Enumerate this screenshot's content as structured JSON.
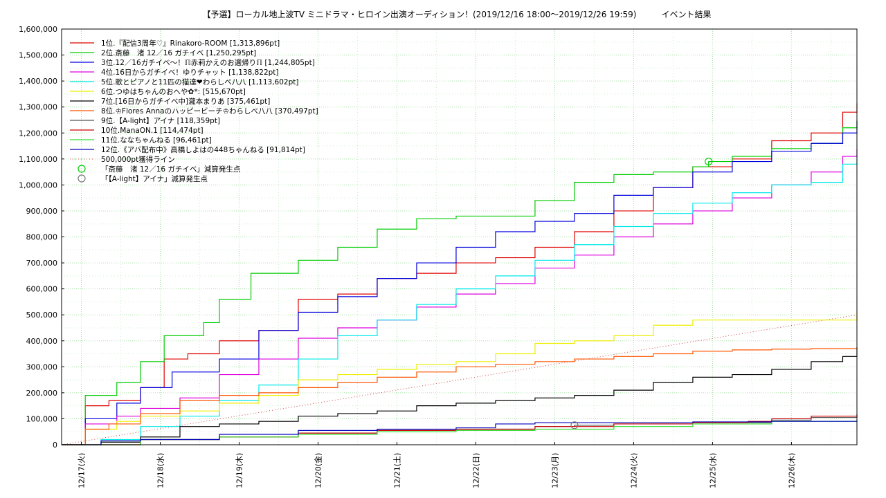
{
  "chart_data": {
    "type": "line",
    "title": "【予選】ローカル地上波TV ミニドラマ・ヒロイン出演オーディション！(2019/12/16 18:00〜2019/12/26 19:59)　　　イベント結果",
    "xlabel": "",
    "ylabel": "",
    "ylim": [
      0,
      1600000
    ],
    "xlim": [
      0,
      10.08
    ],
    "x_unit": "days since 2019/12/16 18:00",
    "grid": true,
    "legend_position": "top-left",
    "y_ticks": [
      "0",
      "100,000",
      "200,000",
      "300,000",
      "400,000",
      "500,000",
      "600,000",
      "700,000",
      "800,000",
      "900,000",
      "1,000,000",
      "1,100,000",
      "1,200,000",
      "1,300,000",
      "1,400,000",
      "1,500,000",
      "1,600,000"
    ],
    "x_ticks": [
      {
        "x": 0.25,
        "label": "12/17(火)"
      },
      {
        "x": 1.25,
        "label": "12/18(水)"
      },
      {
        "x": 2.25,
        "label": "12/19(木)"
      },
      {
        "x": 3.25,
        "label": "12/20(金)"
      },
      {
        "x": 4.25,
        "label": "12/21(土)"
      },
      {
        "x": 5.25,
        "label": "12/22(日)"
      },
      {
        "x": 6.25,
        "label": "12/23(月)"
      },
      {
        "x": 7.25,
        "label": "12/24(火)"
      },
      {
        "x": 8.25,
        "label": "12/25(水)"
      },
      {
        "x": 9.25,
        "label": "12/26(木)"
      }
    ],
    "series": [
      {
        "name": "1位.『配信3周年♡』Rinakoro-ROOM [1,313,896pt]",
        "color": "#e00000",
        "x": [
          0,
          0.3,
          0.6,
          1.0,
          1.3,
          1.6,
          2.0,
          2.5,
          3.0,
          3.5,
          4.0,
          4.5,
          5.0,
          5.5,
          6.0,
          6.5,
          7.0,
          7.5,
          8.0,
          8.5,
          9.0,
          9.5,
          9.9,
          10.08
        ],
        "y": [
          0,
          150000,
          170000,
          220000,
          330000,
          350000,
          400000,
          440000,
          560000,
          580000,
          640000,
          660000,
          700000,
          720000,
          760000,
          820000,
          900000,
          990000,
          1070000,
          1100000,
          1170000,
          1200000,
          1280000,
          1313896
        ]
      },
      {
        "name": "2位.斎藤　渚 12／16 ガチイベ [1,250,295pt]",
        "color": "#00cc00",
        "x": [
          0,
          0.3,
          0.7,
          1.0,
          1.3,
          1.8,
          2.0,
          2.4,
          3.0,
          3.5,
          4.0,
          4.5,
          5.0,
          5.5,
          6.0,
          6.5,
          7.0,
          7.5,
          8.0,
          8.2,
          8.5,
          9.0,
          9.5,
          9.9,
          10.08
        ],
        "y": [
          0,
          190000,
          240000,
          320000,
          420000,
          470000,
          560000,
          660000,
          710000,
          760000,
          830000,
          870000,
          880000,
          880000,
          940000,
          1010000,
          1040000,
          1050000,
          1070000,
          1090000,
          1110000,
          1140000,
          1160000,
          1220000,
          1250295
        ]
      },
      {
        "name": "3位.12／16ガチイベ〜！ℿ赤莉かえのお選帰りℿ [1,244,805pt]",
        "color": "#0000dd",
        "x": [
          0,
          0.3,
          0.7,
          1.0,
          1.4,
          2.0,
          2.5,
          3.0,
          3.5,
          4.0,
          4.5,
          5.0,
          5.5,
          6.0,
          6.5,
          7.0,
          7.5,
          8.0,
          8.5,
          9.0,
          9.5,
          9.9,
          10.08
        ],
        "y": [
          0,
          100000,
          160000,
          220000,
          280000,
          330000,
          440000,
          510000,
          570000,
          640000,
          700000,
          760000,
          820000,
          860000,
          890000,
          960000,
          990000,
          1050000,
          1090000,
          1130000,
          1160000,
          1200000,
          1244805
        ]
      },
      {
        "name": "4位.16日からガチイベ！ゆりチャット [1,138,822pt]",
        "color": "#dd00dd",
        "x": [
          0,
          0.3,
          0.7,
          1.0,
          1.5,
          2.0,
          2.5,
          3.0,
          3.5,
          4.0,
          4.5,
          5.0,
          5.5,
          6.0,
          6.5,
          7.0,
          7.5,
          8.0,
          8.5,
          9.0,
          9.5,
          9.9,
          10.08
        ],
        "y": [
          0,
          80000,
          110000,
          140000,
          180000,
          270000,
          330000,
          410000,
          450000,
          480000,
          530000,
          580000,
          620000,
          680000,
          730000,
          800000,
          850000,
          900000,
          950000,
          1000000,
          1050000,
          1110000,
          1138822
        ]
      },
      {
        "name": "5位.歌とピアノと11匹の猫達❤わらしべ八八 [1,113,602pt]",
        "color": "#00e8e8",
        "x": [
          0,
          0.5,
          1.0,
          1.5,
          2.0,
          2.5,
          3.0,
          3.5,
          4.0,
          4.5,
          5.0,
          5.5,
          6.0,
          6.5,
          7.0,
          7.5,
          8.0,
          8.5,
          9.0,
          9.5,
          9.9,
          10.08
        ],
        "y": [
          0,
          20000,
          70000,
          110000,
          170000,
          230000,
          330000,
          420000,
          480000,
          540000,
          600000,
          650000,
          710000,
          770000,
          840000,
          890000,
          930000,
          970000,
          1000000,
          1010000,
          1080000,
          1113602
        ]
      },
      {
        "name": "6位.つゆはちゃんのおへや✿*: [515,670pt]",
        "color": "#eeee00",
        "x": [
          0,
          0.3,
          0.7,
          1.0,
          1.5,
          2.0,
          2.5,
          3.0,
          3.5,
          4.0,
          4.5,
          5.0,
          5.5,
          6.0,
          6.5,
          7.0,
          7.5,
          8.0,
          8.5,
          9.0,
          9.5,
          9.9,
          10.08
        ],
        "y": [
          0,
          60000,
          90000,
          110000,
          130000,
          160000,
          190000,
          250000,
          270000,
          290000,
          310000,
          320000,
          350000,
          390000,
          400000,
          420000,
          460000,
          480000,
          480000,
          480000,
          480000,
          480000,
          515670
        ]
      },
      {
        "name": "7位.[16日からガチイベ中]瀧本まりあ [375,461pt]",
        "color": "#000000",
        "x": [
          0,
          0.5,
          1.0,
          1.5,
          2.0,
          2.5,
          3.0,
          3.5,
          4.0,
          4.5,
          5.0,
          5.5,
          6.0,
          6.5,
          7.0,
          7.5,
          8.0,
          8.5,
          9.0,
          9.5,
          9.9,
          10.08
        ],
        "y": [
          0,
          10000,
          30000,
          70000,
          80000,
          90000,
          110000,
          120000,
          130000,
          150000,
          160000,
          170000,
          180000,
          190000,
          210000,
          240000,
          260000,
          270000,
          290000,
          320000,
          340000,
          375461
        ]
      },
      {
        "name": "8位.♔Flores Annaのハッピービーチ♔わらしべ八八 [370,497pt]",
        "color": "#ff5500",
        "x": [
          0,
          0.3,
          0.6,
          1.0,
          1.5,
          2.0,
          2.5,
          3.0,
          3.5,
          4.0,
          4.5,
          5.0,
          5.5,
          6.0,
          6.5,
          7.0,
          7.5,
          8.0,
          8.5,
          9.0,
          9.5,
          9.9,
          10.08
        ],
        "y": [
          0,
          60000,
          80000,
          120000,
          170000,
          190000,
          200000,
          220000,
          240000,
          260000,
          280000,
          300000,
          310000,
          320000,
          330000,
          340000,
          350000,
          360000,
          365000,
          368000,
          370000,
          370000,
          370497
        ]
      },
      {
        "name": "9位.【A-light】アイナ [118,359pt]",
        "color": "#555555",
        "x": [
          0,
          1.0,
          2.0,
          3.0,
          4.0,
          5.0,
          6.0,
          6.5,
          7.0,
          8.0,
          9.0,
          9.5,
          10.08
        ],
        "y": [
          0,
          20000,
          30000,
          45000,
          55000,
          60000,
          70000,
          75000,
          80000,
          85000,
          95000,
          105000,
          118359
        ]
      },
      {
        "name": "10位.ManaON.1 [114,474pt]",
        "color": "#cc0000",
        "x": [
          0,
          1.0,
          2.0,
          3.0,
          4.0,
          5.0,
          6.0,
          7.0,
          8.0,
          8.7,
          9.0,
          9.5,
          10.08
        ],
        "y": [
          0,
          20000,
          30000,
          45000,
          55000,
          60000,
          70000,
          80000,
          85000,
          90000,
          100000,
          110000,
          114474
        ]
      },
      {
        "name": "11位.ななちゃんねる [96,461pt]",
        "color": "#33dd33",
        "x": [
          0,
          1.0,
          2.0,
          3.0,
          4.0,
          5.0,
          6.0,
          7.0,
          8.0,
          9.0,
          10.08
        ],
        "y": [
          0,
          20000,
          30000,
          40000,
          50000,
          55000,
          60000,
          70000,
          80000,
          90000,
          96461
        ]
      },
      {
        "name": "12位.《アバ配布中》高橋しよはの448ちゃんねる [91,814pt]",
        "color": "#0000bb",
        "x": [
          0,
          0.5,
          1.0,
          2.0,
          3.0,
          4.0,
          5.0,
          5.5,
          6.0,
          7.0,
          8.0,
          9.0,
          10.08
        ],
        "y": [
          0,
          15000,
          20000,
          40000,
          55000,
          60000,
          65000,
          80000,
          85000,
          85000,
          88000,
          90000,
          91814
        ]
      }
    ],
    "reference_line": {
      "name": "500,000pt獲得ライン",
      "color": "#cc4444",
      "x": [
        0,
        10.08
      ],
      "y": [
        0,
        500000
      ]
    },
    "markers": [
      {
        "name": "「斎藤　渚 12／16 ガチイベ」減算発生点",
        "color": "#00cc00",
        "x": 8.2,
        "y": 1090000
      },
      {
        "name": "「【A-light】アイナ」減算発生点",
        "color": "#777777",
        "x": 6.5,
        "y": 75000
      }
    ]
  }
}
